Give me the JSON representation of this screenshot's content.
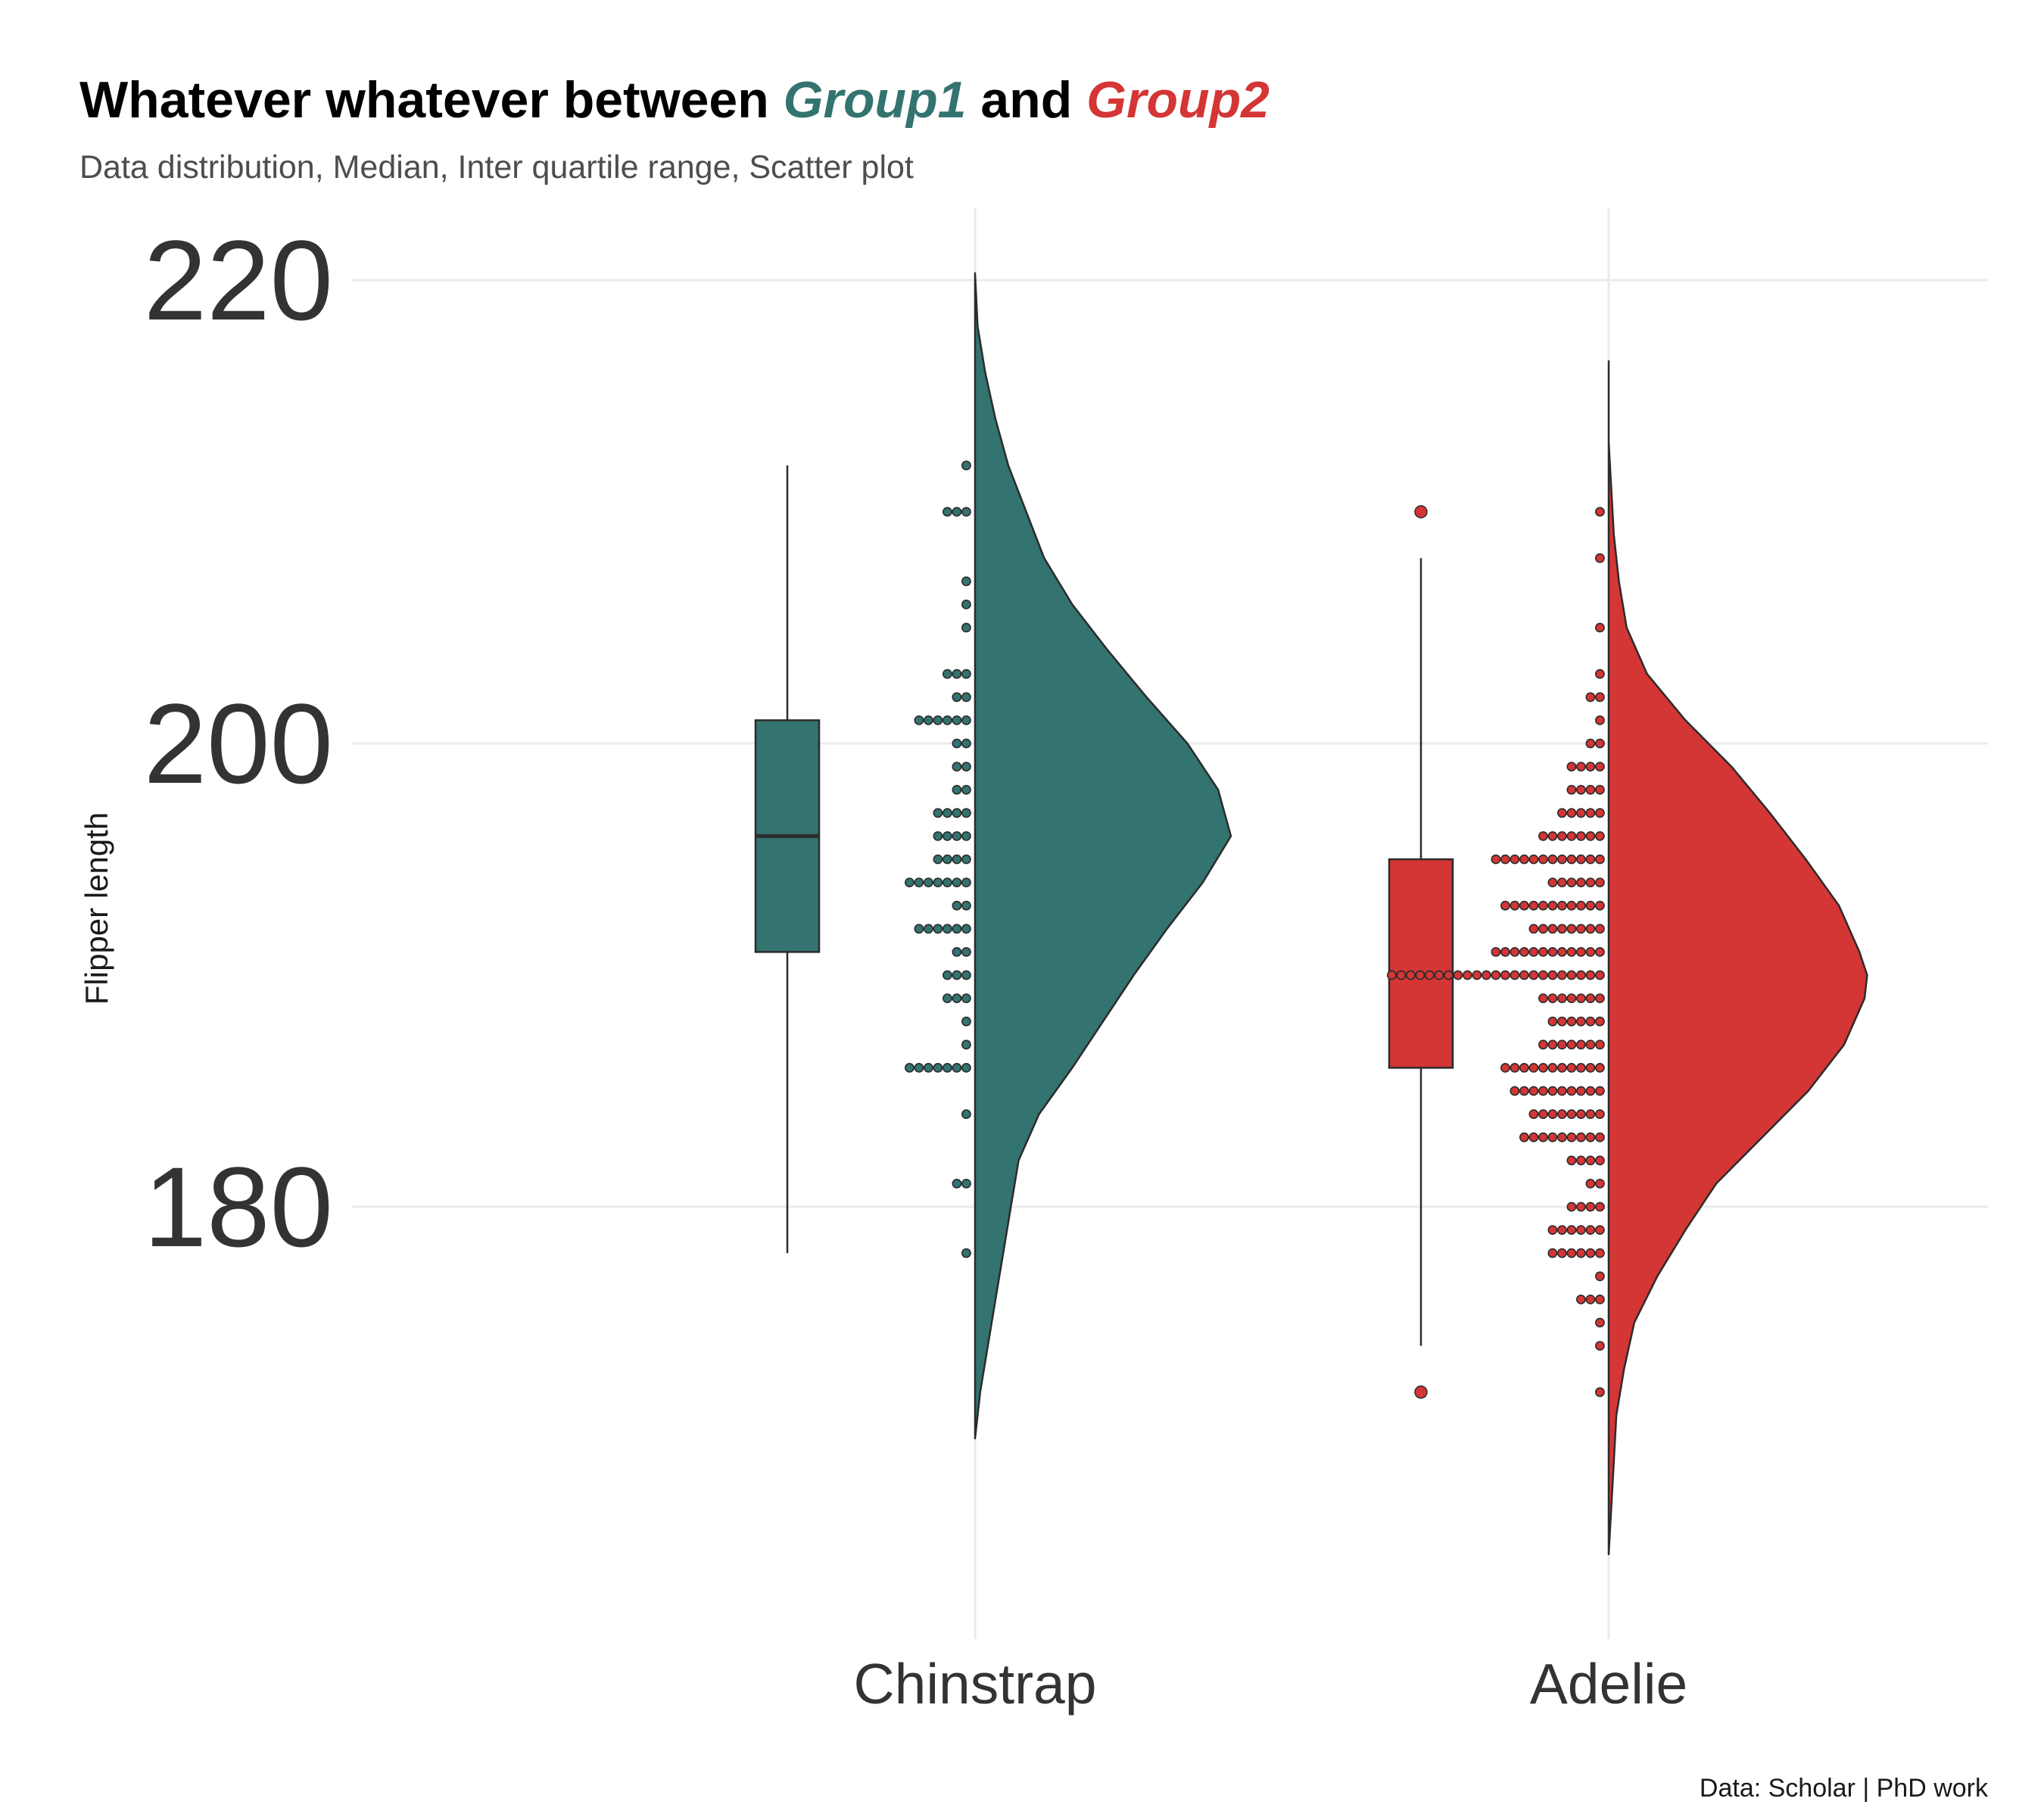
{
  "chart_data": {
    "type": "raincloud",
    "title": {
      "parts": [
        {
          "text": "Whatever whatever between ",
          "style": "plain"
        },
        {
          "text": "Group1",
          "style": "group1"
        },
        {
          "text": " and ",
          "style": "plain"
        },
        {
          "text": "Group2",
          "style": "group2"
        }
      ]
    },
    "subtitle": "Data distribution, Median, Inter quartile range, Scatter plot",
    "ylabel": "Flipper length",
    "caption": "Data: Scholar | PhD work",
    "yticks": [
      180,
      200,
      220
    ],
    "ylim": [
      163,
      224
    ],
    "grid": true,
    "colors": {
      "group1": "#337370",
      "group2": "#d43535",
      "outline": "#2b2b2b",
      "grid": "#ebebeb"
    },
    "groups": [
      {
        "category": "Chinstrap",
        "color": "#337370",
        "box": {
          "lower_whisker": 178,
          "q1": 191,
          "median": 196,
          "q3": 201,
          "upper_whisker": 212
        },
        "outliers": [],
        "density": {
          "y": [
            170,
            172,
            174,
            176,
            178,
            180,
            182,
            184,
            186,
            188,
            190,
            192,
            194,
            196,
            198,
            200,
            202,
            204,
            206,
            208,
            210,
            212,
            214,
            216,
            218,
            220.3
          ],
          "d": [
            0.0,
            0.02,
            0.05,
            0.08,
            0.11,
            0.14,
            0.17,
            0.25,
            0.38,
            0.5,
            0.62,
            0.75,
            0.89,
            1.0,
            0.95,
            0.83,
            0.67,
            0.52,
            0.38,
            0.27,
            0.2,
            0.13,
            0.08,
            0.04,
            0.01,
            0.0
          ]
        },
        "dots": [
          {
            "y": 212,
            "n": 1
          },
          {
            "y": 210,
            "n": 3
          },
          {
            "y": 207,
            "n": 1
          },
          {
            "y": 206,
            "n": 1
          },
          {
            "y": 205,
            "n": 1
          },
          {
            "y": 203,
            "n": 3
          },
          {
            "y": 202,
            "n": 2
          },
          {
            "y": 201,
            "n": 6
          },
          {
            "y": 200,
            "n": 2
          },
          {
            "y": 199,
            "n": 2
          },
          {
            "y": 198,
            "n": 2
          },
          {
            "y": 197,
            "n": 4
          },
          {
            "y": 196,
            "n": 4
          },
          {
            "y": 195,
            "n": 4
          },
          {
            "y": 194,
            "n": 7
          },
          {
            "y": 193,
            "n": 2
          },
          {
            "y": 192,
            "n": 6
          },
          {
            "y": 191,
            "n": 2
          },
          {
            "y": 190,
            "n": 3
          },
          {
            "y": 189,
            "n": 3
          },
          {
            "y": 188,
            "n": 1
          },
          {
            "y": 187,
            "n": 1
          },
          {
            "y": 186,
            "n": 7
          },
          {
            "y": 184,
            "n": 1
          },
          {
            "y": 181,
            "n": 2
          },
          {
            "y": 178,
            "n": 1
          }
        ]
      },
      {
        "category": "Adelie",
        "color": "#d43535",
        "box": {
          "lower_whisker": 174,
          "q1": 186,
          "median": 190,
          "q3": 195,
          "upper_whisker": 208
        },
        "outliers": [
          210,
          172
        ],
        "density": {
          "y": [
            165,
            167,
            169,
            171,
            173,
            175,
            177,
            179,
            181,
            183,
            185,
            187,
            189,
            190,
            191,
            193,
            195,
            197,
            199,
            201,
            203,
            205,
            207,
            209,
            211,
            213,
            215,
            216.5
          ],
          "d": [
            0.0,
            0.01,
            0.02,
            0.03,
            0.06,
            0.1,
            0.19,
            0.3,
            0.42,
            0.6,
            0.78,
            0.92,
            1.0,
            1.01,
            0.98,
            0.9,
            0.77,
            0.63,
            0.48,
            0.3,
            0.15,
            0.07,
            0.04,
            0.02,
            0.01,
            0.0,
            0.0,
            0.0
          ]
        },
        "dots": [
          {
            "y": 210,
            "n": 1
          },
          {
            "y": 208,
            "n": 1
          },
          {
            "y": 205,
            "n": 1
          },
          {
            "y": 203,
            "n": 1
          },
          {
            "y": 202,
            "n": 2
          },
          {
            "y": 201,
            "n": 1
          },
          {
            "y": 200,
            "n": 2
          },
          {
            "y": 199,
            "n": 4
          },
          {
            "y": 198,
            "n": 4
          },
          {
            "y": 197,
            "n": 5
          },
          {
            "y": 196,
            "n": 7
          },
          {
            "y": 195,
            "n": 12
          },
          {
            "y": 194,
            "n": 6
          },
          {
            "y": 193,
            "n": 11
          },
          {
            "y": 192,
            "n": 8
          },
          {
            "y": 191,
            "n": 12
          },
          {
            "y": 190,
            "n": 23
          },
          {
            "y": 189,
            "n": 7
          },
          {
            "y": 188,
            "n": 6
          },
          {
            "y": 187,
            "n": 7
          },
          {
            "y": 186,
            "n": 11
          },
          {
            "y": 185,
            "n": 10
          },
          {
            "y": 184,
            "n": 8
          },
          {
            "y": 183,
            "n": 9
          },
          {
            "y": 182,
            "n": 4
          },
          {
            "y": 181,
            "n": 2
          },
          {
            "y": 180,
            "n": 4
          },
          {
            "y": 179,
            "n": 6
          },
          {
            "y": 178,
            "n": 6
          },
          {
            "y": 177,
            "n": 1
          },
          {
            "y": 176,
            "n": 3
          },
          {
            "y": 175,
            "n": 1
          },
          {
            "y": 174,
            "n": 1
          },
          {
            "y": 172,
            "n": 1
          }
        ]
      }
    ]
  }
}
